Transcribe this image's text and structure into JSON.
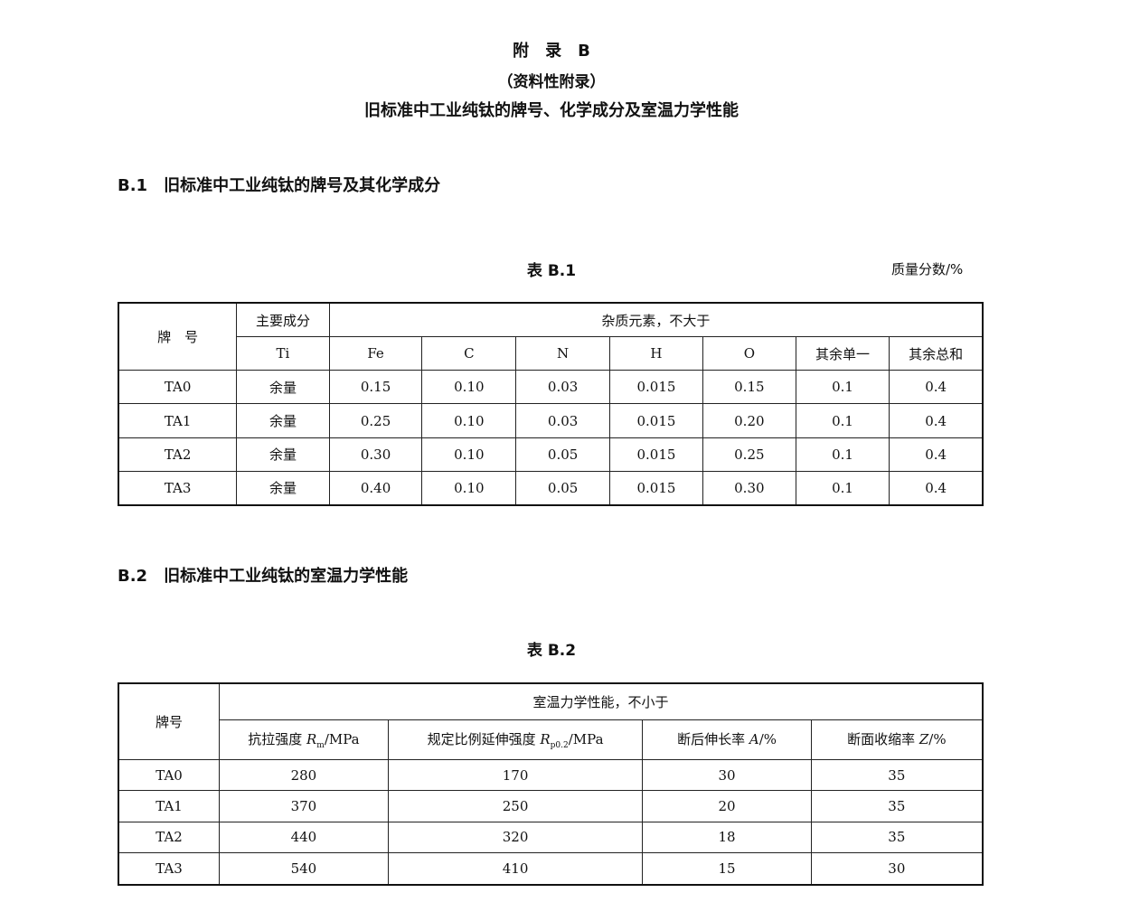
{
  "header": {
    "appendix": "附　录　B",
    "type": "（资料性附录）",
    "title": "旧标准中工业纯钛的牌号、化学成分及室温力学性能"
  },
  "section1": {
    "heading": "B.1　旧标准中工业纯钛的牌号及其化学成分",
    "table_caption": "表 B.1",
    "unit": "质量分数/%",
    "header": {
      "grade": "牌　号",
      "main": "主要成分",
      "impurity": "杂质元素，不大于",
      "cols": [
        "Ti",
        "Fe",
        "C",
        "N",
        "H",
        "O",
        "其余单一",
        "其余总和"
      ]
    },
    "rows": [
      [
        "TA0",
        "余量",
        "0.15",
        "0.10",
        "0.03",
        "0.015",
        "0.15",
        "0.1",
        "0.4"
      ],
      [
        "TA1",
        "余量",
        "0.25",
        "0.10",
        "0.03",
        "0.015",
        "0.20",
        "0.1",
        "0.4"
      ],
      [
        "TA2",
        "余量",
        "0.30",
        "0.10",
        "0.05",
        "0.015",
        "0.25",
        "0.1",
        "0.4"
      ],
      [
        "TA3",
        "余量",
        "0.40",
        "0.10",
        "0.05",
        "0.015",
        "0.30",
        "0.1",
        "0.4"
      ]
    ]
  },
  "section2": {
    "heading": "B.2　旧标准中工业纯钛的室温力学性能",
    "table_caption": "表 B.2",
    "header": {
      "grade": "牌号",
      "group": "室温力学性能，不小于",
      "cols": [
        {
          "pre": "抗拉强度 ",
          "sym": "R",
          "sub": "m",
          "post": "/MPa"
        },
        {
          "pre": "规定比例延伸强度 ",
          "sym": "R",
          "sub": "p0.2",
          "post": "/MPa"
        },
        {
          "pre": "断后伸长率 ",
          "sym": "A",
          "sub": "",
          "post": "/%"
        },
        {
          "pre": "断面收缩率 ",
          "sym": "Z",
          "sub": "",
          "post": "/%"
        }
      ]
    },
    "rows": [
      [
        "TA0",
        "280",
        "170",
        "30",
        "35"
      ],
      [
        "TA1",
        "370",
        "250",
        "20",
        "35"
      ],
      [
        "TA2",
        "440",
        "320",
        "18",
        "35"
      ],
      [
        "TA3",
        "540",
        "410",
        "15",
        "30"
      ]
    ]
  }
}
